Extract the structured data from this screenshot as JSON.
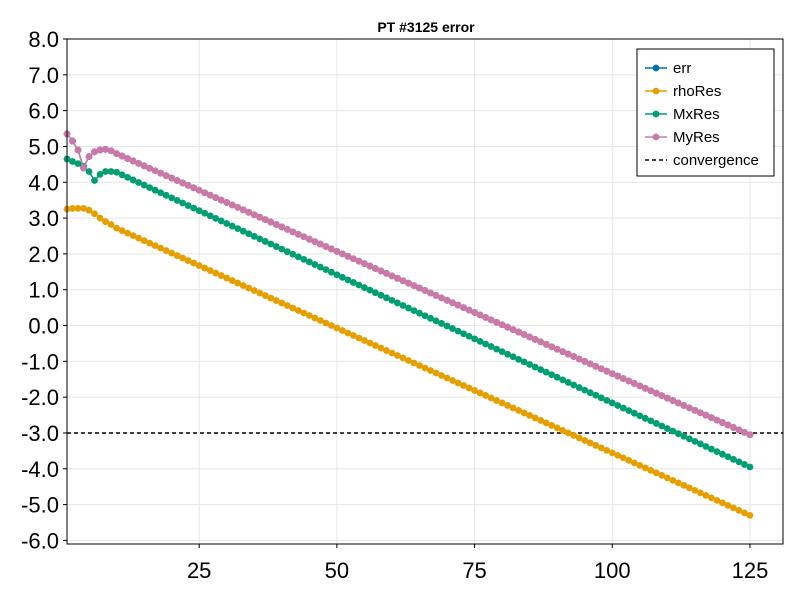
{
  "chart_data": {
    "type": "line",
    "title": "PT #3125 error",
    "xlabel": "",
    "ylabel": "",
    "xlim": [
      1,
      131
    ],
    "ylim": [
      -6.1,
      8.0
    ],
    "xticks": [
      25,
      50,
      75,
      100,
      125
    ],
    "yticks": [
      8,
      7,
      6,
      5,
      4,
      3,
      2,
      1,
      0,
      -1,
      -2,
      -3,
      -4,
      -5,
      -6
    ],
    "grid": true,
    "legend_position": "top-right",
    "x": {
      "start": 1,
      "end": 125,
      "step": 1
    },
    "series": [
      {
        "name": "err",
        "color": "#0072b2",
        "marker": "circle",
        "keypoints": [
          [
            1,
            5.35
          ],
          [
            2,
            5.15
          ],
          [
            3,
            4.9
          ],
          [
            4,
            4.4
          ],
          [
            5,
            4.72
          ],
          [
            6,
            4.85
          ],
          [
            7,
            4.9
          ],
          [
            8,
            4.92
          ],
          [
            9,
            4.88
          ],
          [
            10,
            4.8
          ],
          [
            125,
            -3.05
          ]
        ]
      },
      {
        "name": "rhoRes",
        "color": "#e69f00",
        "marker": "circle",
        "keypoints": [
          [
            1,
            3.25
          ],
          [
            2,
            3.27
          ],
          [
            3,
            3.27
          ],
          [
            4,
            3.27
          ],
          [
            5,
            3.22
          ],
          [
            6,
            3.12
          ],
          [
            7,
            3.0
          ],
          [
            8,
            2.9
          ],
          [
            9,
            2.82
          ],
          [
            10,
            2.72
          ],
          [
            125,
            -5.3
          ]
        ]
      },
      {
        "name": "MxRes",
        "color": "#009e73",
        "marker": "circle",
        "keypoints": [
          [
            1,
            4.65
          ],
          [
            2,
            4.58
          ],
          [
            3,
            4.52
          ],
          [
            4,
            4.45
          ],
          [
            5,
            4.3
          ],
          [
            6,
            4.05
          ],
          [
            7,
            4.22
          ],
          [
            8,
            4.3
          ],
          [
            9,
            4.3
          ],
          [
            10,
            4.28
          ],
          [
            125,
            -3.95
          ]
        ]
      },
      {
        "name": "MyRes",
        "color": "#cc79a7",
        "marker": "circle",
        "keypoints": [
          [
            1,
            5.35
          ],
          [
            2,
            5.15
          ],
          [
            3,
            4.9
          ],
          [
            4,
            4.4
          ],
          [
            5,
            4.72
          ],
          [
            6,
            4.85
          ],
          [
            7,
            4.9
          ],
          [
            8,
            4.92
          ],
          [
            9,
            4.88
          ],
          [
            10,
            4.8
          ],
          [
            125,
            -3.05
          ]
        ]
      }
    ],
    "reference_lines": [
      {
        "name": "convergence",
        "y": -3.0,
        "color": "#000000",
        "style": "dashed"
      }
    ]
  }
}
